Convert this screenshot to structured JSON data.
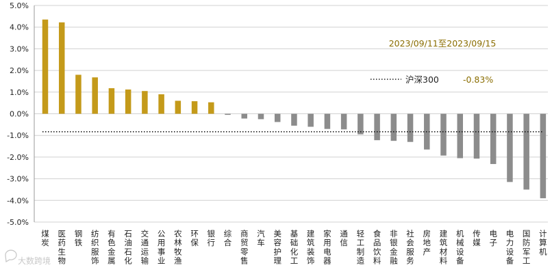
{
  "chart_data": {
    "type": "bar",
    "title": "",
    "xlabel": "",
    "ylabel": "",
    "ylim": [
      -5.0,
      5.0
    ],
    "yticks": [
      "5.0%",
      "4.0%",
      "3.0%",
      "2.0%",
      "1.0%",
      "0.0%",
      "-1.0%",
      "-2.0%",
      "-3.0%",
      "-4.0%",
      "-5.0%"
    ],
    "ytick_values": [
      5,
      4,
      3,
      2,
      1,
      0,
      -1,
      -2,
      -3,
      -4,
      -5
    ],
    "grid": "horizontal",
    "categories": [
      "煤炭",
      "医药生物",
      "钢铁",
      "纺织服饰",
      "有色金属",
      "石油石化",
      "交通运输",
      "公用事业",
      "农林牧渔",
      "环保",
      "银行",
      "综合",
      "商贸零售",
      "汽车",
      "美容护理",
      "基础化工",
      "建筑装饰",
      "家用电器",
      "通信",
      "轻工制造",
      "食品饮料",
      "非银金融",
      "社会服务",
      "房地产",
      "建筑材料",
      "机械设备",
      "传媒",
      "电子",
      "电力设备",
      "国防军工",
      "计算机"
    ],
    "values": [
      4.35,
      4.22,
      1.8,
      1.68,
      1.18,
      1.12,
      1.05,
      0.9,
      0.6,
      0.58,
      0.53,
      -0.05,
      -0.22,
      -0.25,
      -0.38,
      -0.55,
      -0.6,
      -0.7,
      -0.72,
      -0.95,
      -1.22,
      -1.25,
      -1.3,
      -1.65,
      -1.93,
      -2.05,
      -2.07,
      -2.32,
      -3.15,
      -3.5,
      -3.9
    ],
    "reference_line": {
      "name": "沪深300",
      "value": -0.83,
      "label": "-0.83%",
      "style": "dotted"
    },
    "date_range_label": "2023/09/11至2023/09/15",
    "colors": {
      "positive": "#C49A1A",
      "negative": "#8C8C8C",
      "grid": "#D0D0D0",
      "reference": "#1A1A1A",
      "annotation": "#8A6D00"
    }
  },
  "watermark": {
    "text": "大数跨境",
    "icon": "chat-bubble-icon"
  }
}
